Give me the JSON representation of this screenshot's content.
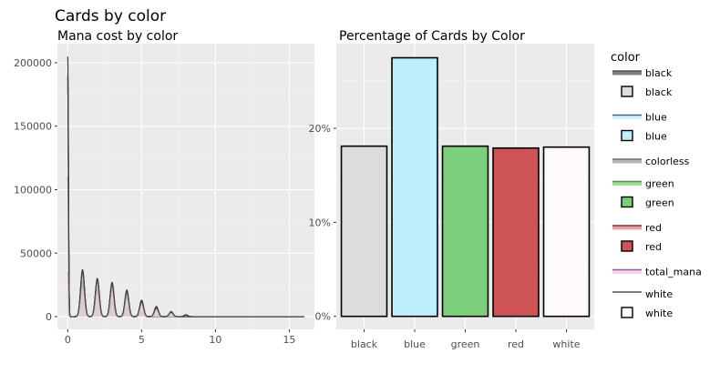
{
  "page_title": "Cards by color",
  "chart_data": [
    {
      "type": "line",
      "title": "Mana cost by color",
      "xlabel": "",
      "ylabel": "",
      "xlim": [
        -0.7,
        16.7
      ],
      "ylim": [
        -10000,
        215000
      ],
      "x_ticks": [
        0,
        5,
        10,
        15
      ],
      "y_ticks": [
        0,
        50000,
        100000,
        150000,
        200000
      ],
      "y_tick_labels": [
        "0",
        "50000",
        "100000",
        "150000",
        "200000"
      ],
      "grid": true,
      "series": [
        {
          "name": "black",
          "color": "#111111",
          "fill": "#dcdcdc",
          "peaks": [
            {
              "x": 0,
              "y": 205000
            },
            {
              "x": 1,
              "y": 37000
            },
            {
              "x": 2,
              "y": 30000
            },
            {
              "x": 3,
              "y": 27000
            },
            {
              "x": 4,
              "y": 21000
            },
            {
              "x": 5,
              "y": 13000
            },
            {
              "x": 6,
              "y": 8000
            },
            {
              "x": 7,
              "y": 4000
            },
            {
              "x": 8,
              "y": 1500
            }
          ]
        },
        {
          "name": "blue",
          "color": "#333333",
          "fill": "#bfeefc",
          "peaks": [
            {
              "x": 0,
              "y": 190000
            },
            {
              "x": 1,
              "y": 36000
            },
            {
              "x": 2,
              "y": 29000
            },
            {
              "x": 3,
              "y": 26000
            },
            {
              "x": 4,
              "y": 20000
            },
            {
              "x": 5,
              "y": 12000
            },
            {
              "x": 6,
              "y": 7500
            },
            {
              "x": 7,
              "y": 3500
            },
            {
              "x": 8,
              "y": 1200
            }
          ]
        },
        {
          "name": "colorless",
          "color": "#555555",
          "fill": "#a0a0a0",
          "peaks": [
            {
              "x": 0,
              "y": 110000
            },
            {
              "x": 1,
              "y": 28000
            },
            {
              "x": 2,
              "y": 20000
            },
            {
              "x": 3,
              "y": 12000
            },
            {
              "x": 4,
              "y": 7000
            },
            {
              "x": 5,
              "y": 3000
            }
          ]
        },
        {
          "name": "green",
          "color": "#222222",
          "fill": "#7ccf7a",
          "peaks": [
            {
              "x": 0,
              "y": 180000
            },
            {
              "x": 1,
              "y": 34000
            },
            {
              "x": 2,
              "y": 28000
            },
            {
              "x": 3,
              "y": 25000
            },
            {
              "x": 4,
              "y": 19000
            },
            {
              "x": 5,
              "y": 12000
            },
            {
              "x": 6,
              "y": 7000
            },
            {
              "x": 7,
              "y": 3200
            }
          ]
        },
        {
          "name": "red",
          "color": "#2a2a2a",
          "fill": "#d48b88",
          "peaks": [
            {
              "x": 0,
              "y": 185000
            },
            {
              "x": 1,
              "y": 35000
            },
            {
              "x": 2,
              "y": 29000
            },
            {
              "x": 3,
              "y": 25000
            },
            {
              "x": 4,
              "y": 19000
            },
            {
              "x": 5,
              "y": 11000
            },
            {
              "x": 6,
              "y": 6500
            },
            {
              "x": 7,
              "y": 3000
            }
          ]
        },
        {
          "name": "total_mana",
          "color": "#b06bb0",
          "fill": "#e8c8e8",
          "peaks": [
            {
              "x": 0,
              "y": 35000
            },
            {
              "x": 1,
              "y": 24000
            },
            {
              "x": 2,
              "y": 22000
            },
            {
              "x": 3,
              "y": 20000
            },
            {
              "x": 4,
              "y": 15000
            },
            {
              "x": 5,
              "y": 10000
            },
            {
              "x": 6,
              "y": 6000
            },
            {
              "x": 7,
              "y": 3000
            }
          ]
        },
        {
          "name": "white",
          "color": "#444444",
          "fill": "#fdf8f7",
          "peaks": [
            {
              "x": 0,
              "y": 188000
            },
            {
              "x": 1,
              "y": 36000
            },
            {
              "x": 2,
              "y": 29000
            },
            {
              "x": 3,
              "y": 26000
            },
            {
              "x": 4,
              "y": 20000
            },
            {
              "x": 5,
              "y": 12000
            },
            {
              "x": 6,
              "y": 7000
            },
            {
              "x": 7,
              "y": 3500
            }
          ]
        }
      ]
    },
    {
      "type": "bar",
      "title": "Percentage of Cards by Color",
      "xlabel": "",
      "ylabel": "",
      "categories": [
        "black",
        "blue",
        "green",
        "red",
        "white"
      ],
      "values": [
        18.1,
        27.5,
        18.1,
        17.9,
        18.0
      ],
      "colors": [
        "#dcdcdc",
        "#bfeefc",
        "#7ccf7a",
        "#cd5354",
        "#fffafa"
      ],
      "ylim": [
        -1.38,
        29.0
      ],
      "y_ticks": [
        0,
        10,
        20
      ],
      "y_tick_labels": [
        "0%",
        "10%",
        "20%"
      ],
      "grid": true
    }
  ],
  "legend": {
    "title": "color",
    "position": "right",
    "items": [
      {
        "label": "black",
        "line_color": "#555555",
        "line_band": "#555555",
        "fill": "#dcdcdc",
        "has_box": true
      },
      {
        "label": "blue",
        "line_color": "#4a6080",
        "line_band": "#bfeefc",
        "fill": "#bfeefc",
        "has_box": true
      },
      {
        "label": "colorless",
        "line_color": "#6a6a6a",
        "line_band": "#a0a0a0",
        "fill": "",
        "has_box": false
      },
      {
        "label": "green",
        "line_color": "#5a8a5a",
        "line_band": "#7ccf7a",
        "fill": "#7ccf7a",
        "has_box": true
      },
      {
        "label": "red",
        "line_color": "#7a3030",
        "line_band": "#d48b88",
        "fill": "#cd5354",
        "has_box": true
      },
      {
        "label": "total_mana",
        "line_color": "#a05aa0",
        "line_band": "#e8c8e8",
        "fill": "",
        "has_box": false
      },
      {
        "label": "white",
        "line_color": "#555555",
        "line_band": "#fdf8f7",
        "fill": "#ffffff",
        "has_box": true
      }
    ]
  }
}
